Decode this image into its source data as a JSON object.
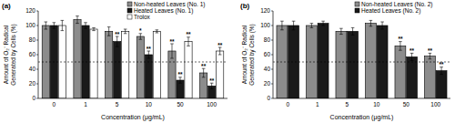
{
  "chart_data": [
    {
      "type": "bar",
      "title": "(a)",
      "x_label": "Concentration (μg/mL)",
      "y_label": "Amount of O₂⁻ Radical\nGenerated by Cells (%)",
      "categories": [
        "0",
        "1",
        "5",
        "10",
        "50",
        "100"
      ],
      "series": [
        {
          "name": "Non-heated Leaves (No. 1)",
          "color": "#8c8c8c",
          "values": [
            100,
            108,
            92,
            85,
            65,
            35
          ],
          "errors": [
            5,
            5,
            6,
            4,
            10,
            6
          ],
          "significance": [
            null,
            null,
            null,
            "*",
            "**",
            "**"
          ]
        },
        {
          "name": "Heated Leaves (No. 1)",
          "color": "#1a1a1a",
          "values": [
            100,
            100,
            78,
            60,
            25,
            17
          ],
          "errors": [
            4,
            4,
            7,
            5,
            4,
            4
          ],
          "significance": [
            null,
            null,
            "**",
            "**",
            "**",
            "**"
          ]
        },
        {
          "name": "Trolox",
          "color": "#ffffff",
          "values": [
            100,
            95,
            92,
            92,
            78,
            65
          ],
          "errors": [
            7,
            2,
            3,
            2,
            6,
            5
          ],
          "significance": [
            null,
            null,
            null,
            null,
            "**",
            "**"
          ]
        }
      ],
      "hline": 50,
      "ylim": [
        0,
        120
      ],
      "yticks": [
        0,
        20,
        40,
        60,
        80,
        100,
        120
      ],
      "grid": false,
      "legend": "upper right"
    },
    {
      "type": "bar",
      "title": "(b)",
      "x_label": "Concentration (μg/mL)",
      "y_label": "Amount of O₂⁻ Radical\nGenerated by Cells (%)",
      "categories": [
        "0",
        "1",
        "5",
        "10",
        "50",
        "100"
      ],
      "series": [
        {
          "name": "Non-heated Leaves (No. 2)",
          "color": "#8c8c8c",
          "values": [
            100,
            100,
            92,
            103,
            72,
            58
          ],
          "errors": [
            6,
            3,
            4,
            4,
            6,
            4
          ],
          "significance": [
            null,
            null,
            null,
            null,
            "**",
            "**"
          ]
        },
        {
          "name": "Heated Leaves (No. 2)",
          "color": "#1a1a1a",
          "values": [
            100,
            103,
            92,
            100,
            57,
            38
          ],
          "errors": [
            6,
            3,
            5,
            5,
            5,
            5
          ],
          "significance": [
            null,
            null,
            null,
            null,
            "**",
            "**"
          ]
        }
      ],
      "hline": 50,
      "ylim": [
        0,
        120
      ],
      "yticks": [
        0,
        20,
        40,
        60,
        80,
        100,
        120
      ],
      "grid": false,
      "legend": "upper right"
    }
  ]
}
